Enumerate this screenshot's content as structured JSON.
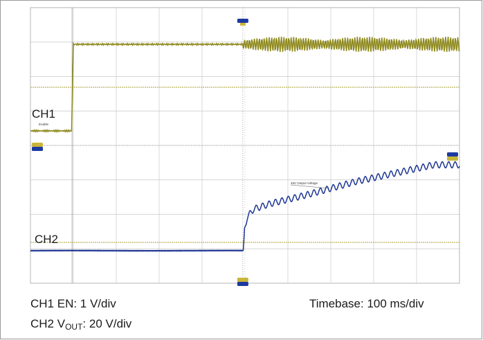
{
  "chart_data": {
    "type": "line",
    "x_unit": "ms",
    "xlim": [
      0,
      1000
    ],
    "grid": true,
    "channel_labels": {
      "ch1": "CH1",
      "ch2": "CH2"
    },
    "annotations": {
      "ch1": "Enable",
      "ch2": "48V Output Voltage"
    },
    "series": [
      {
        "name": "CH1",
        "color": "#8f8a1e",
        "points": [
          [
            0,
            0
          ],
          [
            97,
            0
          ],
          [
            100,
            2.5
          ],
          [
            490,
            2.5
          ],
          [
            500,
            2.5
          ],
          [
            1000,
            2.5
          ]
        ],
        "ripple_start_ms": 495
      },
      {
        "name": "CH2",
        "color": "#1c3592",
        "points": [
          [
            0,
            0
          ],
          [
            496,
            0
          ],
          [
            499,
            8
          ],
          [
            505,
            12
          ],
          [
            520,
            15
          ],
          [
            560,
            17
          ],
          [
            640,
            20
          ],
          [
            760,
            25
          ],
          [
            880,
            29
          ],
          [
            940,
            31
          ],
          [
            1000,
            31
          ]
        ]
      }
    ]
  },
  "caption": {
    "ch1_setting_prefix": "CH1 EN: 1 V/div",
    "ch2_setting_prefix": "CH2 V",
    "ch2_setting_sub": "OUT",
    "ch2_setting_suffix": ": 20 V/div",
    "timebase": "Timebase: 100 ms/div"
  },
  "colors": {
    "ch1": "#8f8a1e",
    "ch2": "#1c3592",
    "grid": "#c8c8c8",
    "marker_ch1": "#c9b63a",
    "marker_blue": "#1d3aa0"
  }
}
